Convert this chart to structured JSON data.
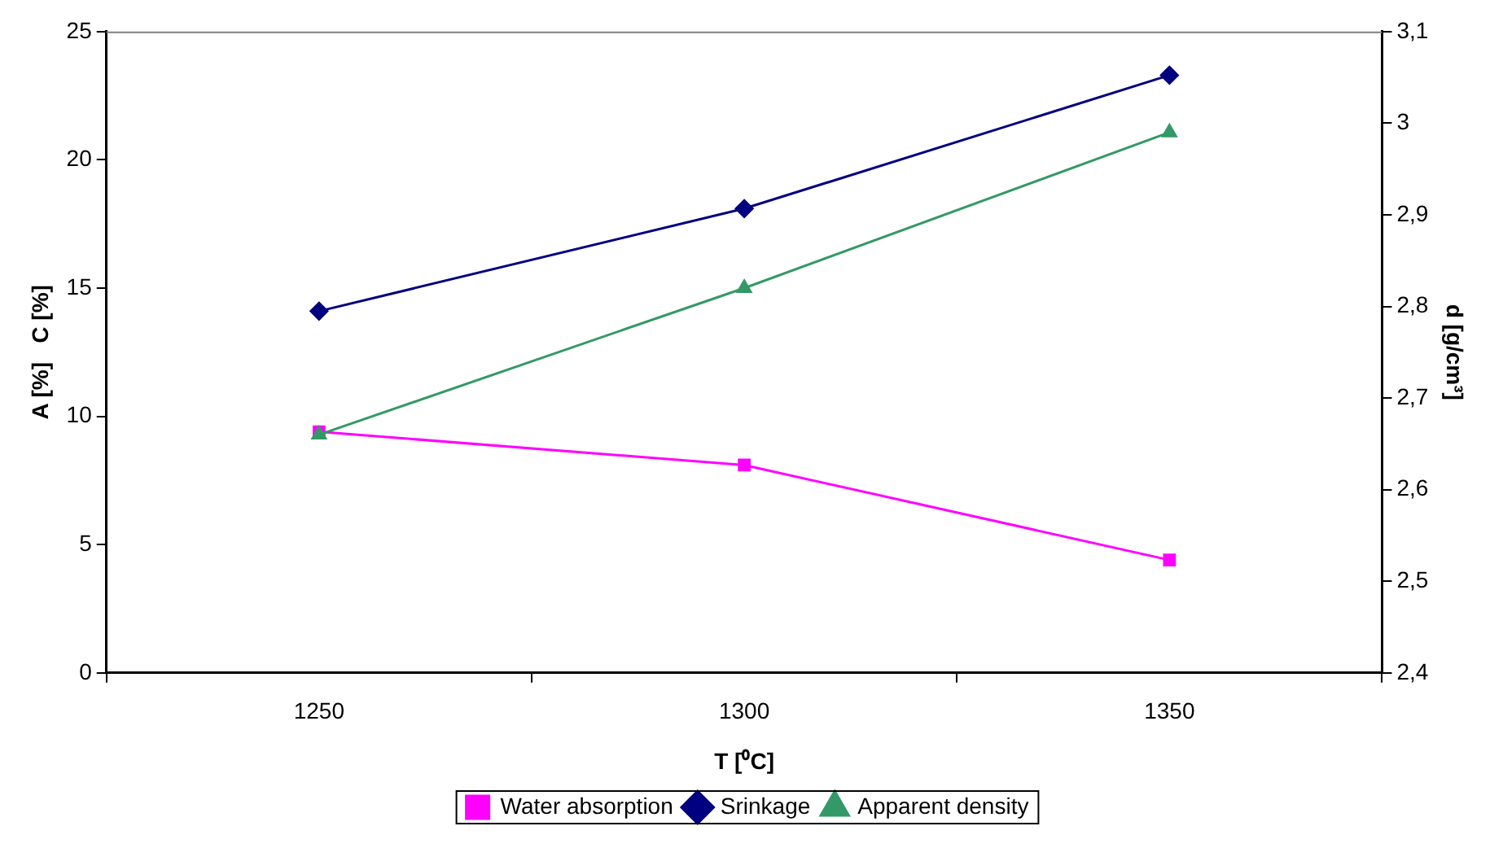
{
  "chart_data": {
    "type": "line",
    "xlabel": "T [⁰C]",
    "ylabel": "A [%]   C [%]",
    "y2label": "d [g/cm³]",
    "categories": [
      "1250",
      "1300",
      "1350"
    ],
    "series": [
      {
        "name": "Water absorption",
        "color": "#ff00ff",
        "values": [
          9.4,
          8.1,
          4.4
        ],
        "marker": "square"
      },
      {
        "name": "Srinkage",
        "color": "#000080",
        "values": [
          14.1,
          18.1,
          23.3
        ],
        "marker": "diamond"
      },
      {
        "name": "Apparent density",
        "color": "#339966",
        "values": [
          2.66,
          2.82,
          2.99
        ],
        "marker": "triangle",
        "axis": "y2"
      }
    ],
    "ylim": [
      0,
      25
    ],
    "yticks": [
      0,
      5,
      10,
      15,
      20,
      25
    ],
    "y2lim": [
      2.4,
      3.1
    ],
    "y2ticks": [
      {
        "value": 2.4,
        "label": "2,4"
      },
      {
        "value": 2.5,
        "label": "2,5"
      },
      {
        "value": 2.6,
        "label": "2,6"
      },
      {
        "value": 2.7,
        "label": "2,7"
      },
      {
        "value": 2.8,
        "label": "2,8"
      },
      {
        "value": 2.9,
        "label": "2,9"
      },
      {
        "value": 3,
        "label": "3"
      },
      {
        "value": 3.1,
        "label": "3,1"
      }
    ],
    "grid": false,
    "legend": "bottom",
    "line_style": "solid"
  }
}
